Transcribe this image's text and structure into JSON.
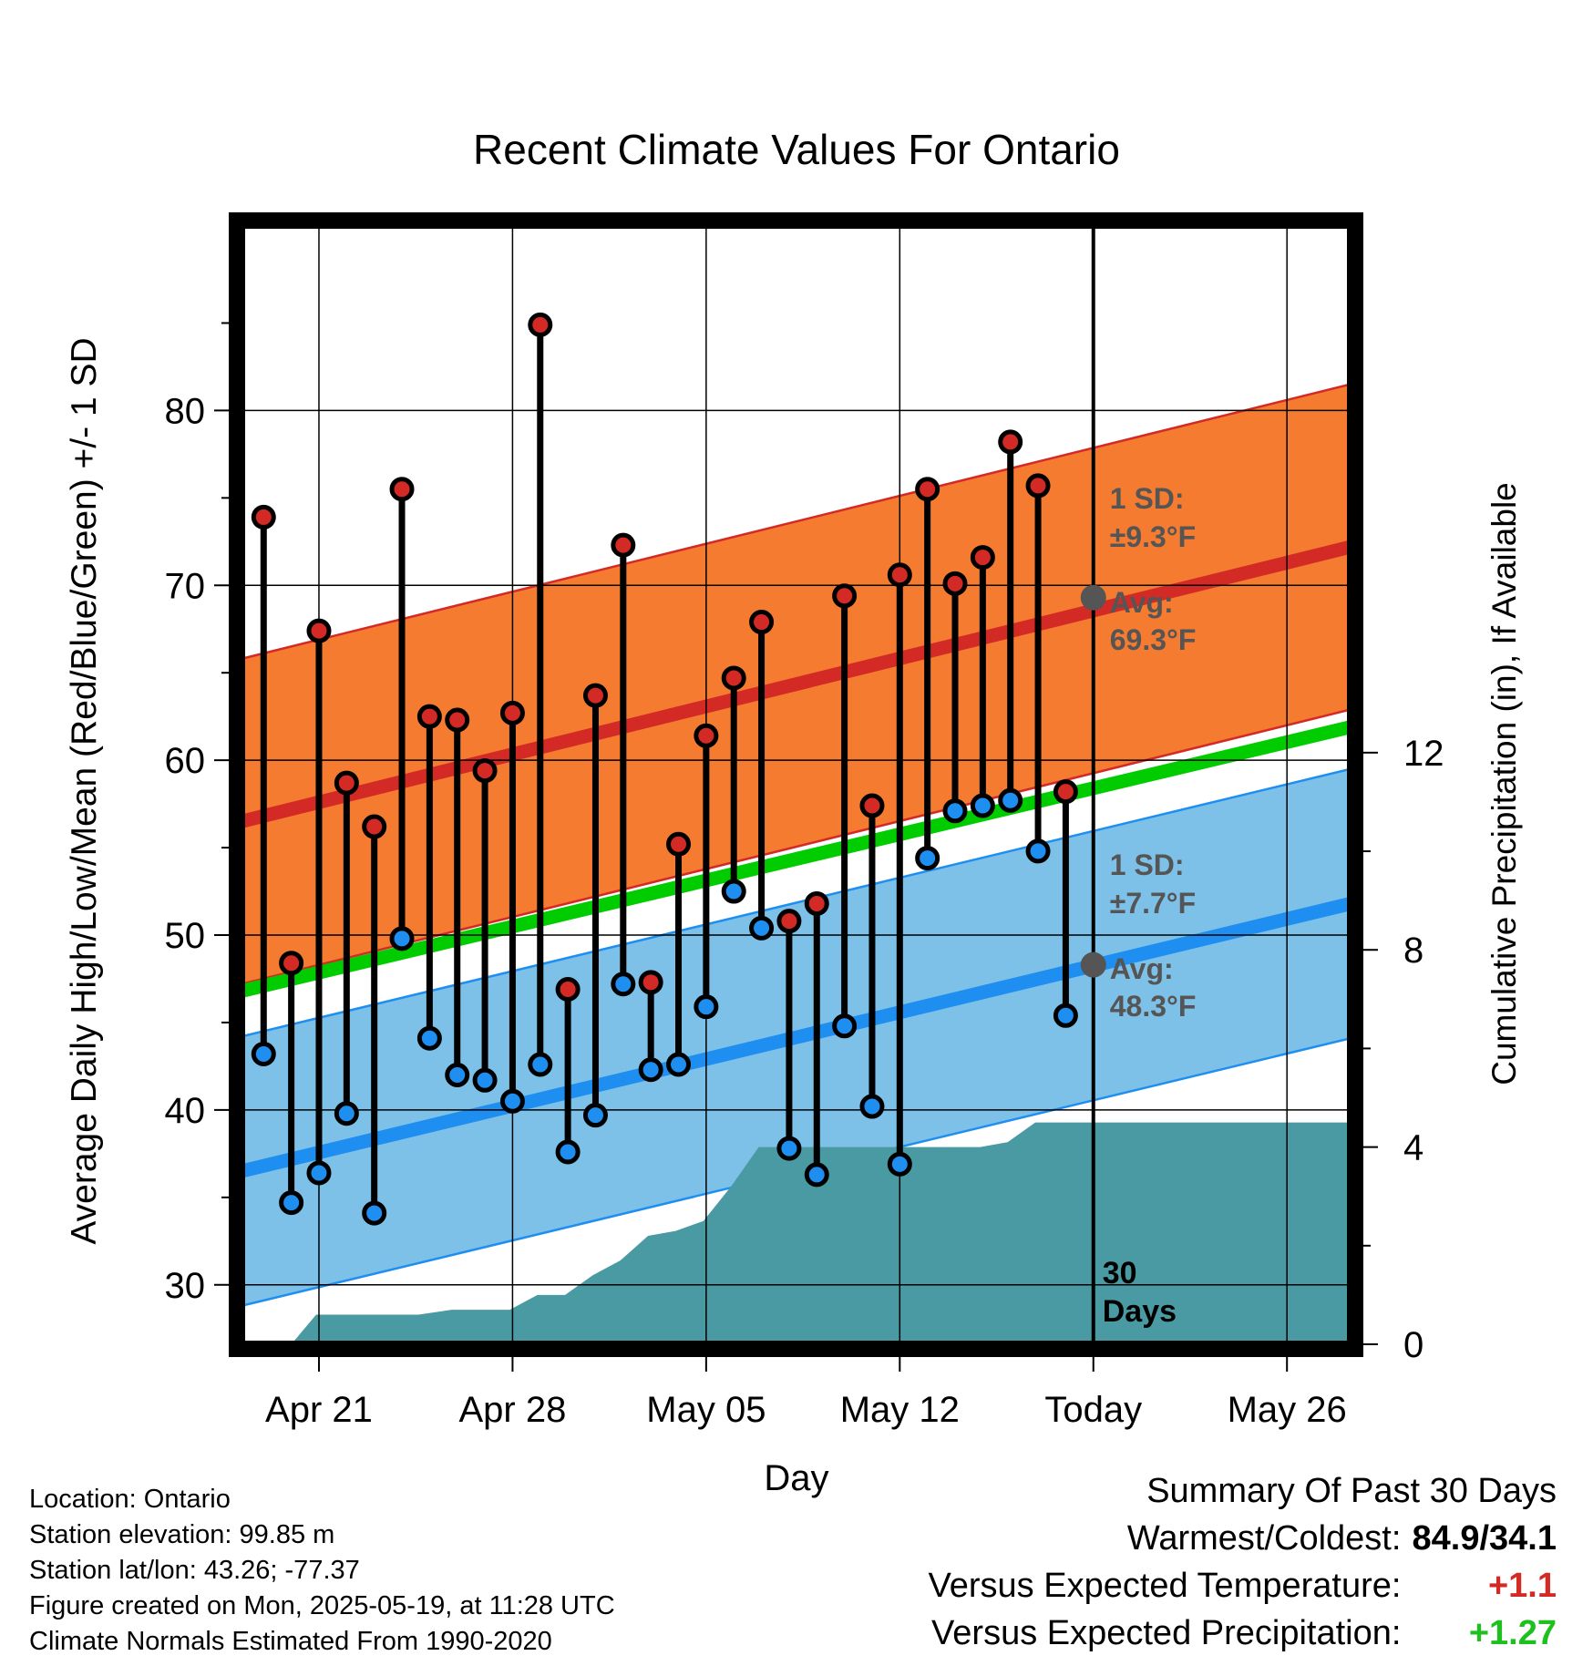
{
  "chart_data": {
    "type": "line",
    "title": "Recent Climate Values For Ontario",
    "xlabel": "Day",
    "ylabel": "Average Daily High/Low/Mean (Red/Blue/Green) +/- 1 SD",
    "ylabel_right": "Cumulative Precipitation (in), If Available",
    "x_ticks": [
      {
        "day": 21,
        "label": "Apr 21"
      },
      {
        "day": 28,
        "label": "Apr 28"
      },
      {
        "day": 35,
        "label": "May 05"
      },
      {
        "day": 42,
        "label": "May 12"
      },
      {
        "day": 49,
        "label": "Today"
      },
      {
        "day": 56,
        "label": "May 26"
      }
    ],
    "x_axis": "day number counted from Apr 1",
    "xlim": [
      18.2,
      58.3
    ],
    "ylim": [
      26.6,
      90.6
    ],
    "y_ticks": [
      30,
      40,
      50,
      60,
      70,
      80
    ],
    "y2lim": [
      0,
      22.7
    ],
    "y2_ticks": [
      0,
      4,
      8,
      12
    ],
    "grid": true,
    "today": 49,
    "observed": {
      "days": [
        19,
        20,
        21,
        22,
        23,
        24,
        25,
        26,
        27,
        28,
        29,
        30,
        31,
        32,
        33,
        34,
        35,
        36,
        37,
        38,
        39,
        40,
        41,
        42,
        43,
        44,
        45,
        46,
        47,
        48
      ],
      "high": [
        73.9,
        48.4,
        67.4,
        58.7,
        56.2,
        75.5,
        62.5,
        62.3,
        59.4,
        62.7,
        84.9,
        46.9,
        63.7,
        72.3,
        47.3,
        55.2,
        61.4,
        64.7,
        67.9,
        50.8,
        51.8,
        69.4,
        57.4,
        70.6,
        75.5,
        70.1,
        71.6,
        78.2,
        75.7,
        58.2
      ],
      "low": [
        43.2,
        34.7,
        36.4,
        39.8,
        34.1,
        49.8,
        44.1,
        42.0,
        41.7,
        40.5,
        42.6,
        37.6,
        39.7,
        47.2,
        42.3,
        42.6,
        45.9,
        52.5,
        50.4,
        37.8,
        36.3,
        44.8,
        40.2,
        36.9,
        54.4,
        57.1,
        57.4,
        57.7,
        54.8,
        45.4
      ]
    },
    "normals": {
      "days": [
        18.2,
        58.3
      ],
      "high_mean": [
        56.5,
        72.2
      ],
      "high_sd": 9.3,
      "low_mean": [
        36.5,
        51.8
      ],
      "low_sd": 7.7,
      "mean": [
        46.8,
        61.9
      ]
    },
    "precip_cumulative": {
      "days": [
        20,
        20.9,
        24.6,
        25.8,
        27.9,
        28.9,
        29.9,
        30.9,
        31.9,
        32.9,
        33.9,
        34.9,
        35.9,
        36.9,
        44.9,
        45.9,
        46.9,
        58.3
      ],
      "values": [
        0,
        0.6,
        0.6,
        0.7,
        0.7,
        1.0,
        1.0,
        1.4,
        1.7,
        2.2,
        2.3,
        2.5,
        3.2,
        4.0,
        4.0,
        4.1,
        4.5,
        4.5
      ]
    },
    "annotations": {
      "high_sd_label": "1 SD:",
      "high_sd_value": "±9.3°F",
      "high_avg_label": "Avg:",
      "high_avg_value": "69.3°F",
      "high_avg_at_today": 69.3,
      "low_sd_label": "1 SD:",
      "low_sd_value": "±7.7°F",
      "low_avg_label": "Avg:",
      "low_avg_value": "48.3°F",
      "low_avg_at_today": 48.3,
      "window_label_1": "30",
      "window_label_2": "Days"
    },
    "colors": {
      "high_band": "#f47b30",
      "high_line": "#d42a26",
      "low_band": "#7ec1e8",
      "low_line": "#1e8ef0",
      "mean_line": "#00cc00",
      "precip": "#4a9aa4",
      "high_marker": "#d42a26",
      "low_marker": "#1e8ef0",
      "annotation_text": "#555555"
    }
  },
  "footer": {
    "location": "Location: Ontario",
    "elevation": "Station elevation: 99.85 m",
    "latlon": "Station lat/lon: 43.26; -77.37",
    "created": "Figure created on Mon, 2025-05-19, at 11:28 UTC",
    "normals": "Climate Normals Estimated From 1990-2020"
  },
  "summary": {
    "title": "Summary Of Past 30 Days",
    "warm_cold_label": "Warmest/Coldest:",
    "warm_cold_value": "84.9/34.1",
    "temp_label": "Versus Expected Temperature:",
    "temp_value": "+1.1",
    "temp_color": "#d42a26",
    "precip_label": "Versus Expected Precipitation:",
    "precip_value": "+1.27",
    "precip_color": "#1ec01e"
  }
}
